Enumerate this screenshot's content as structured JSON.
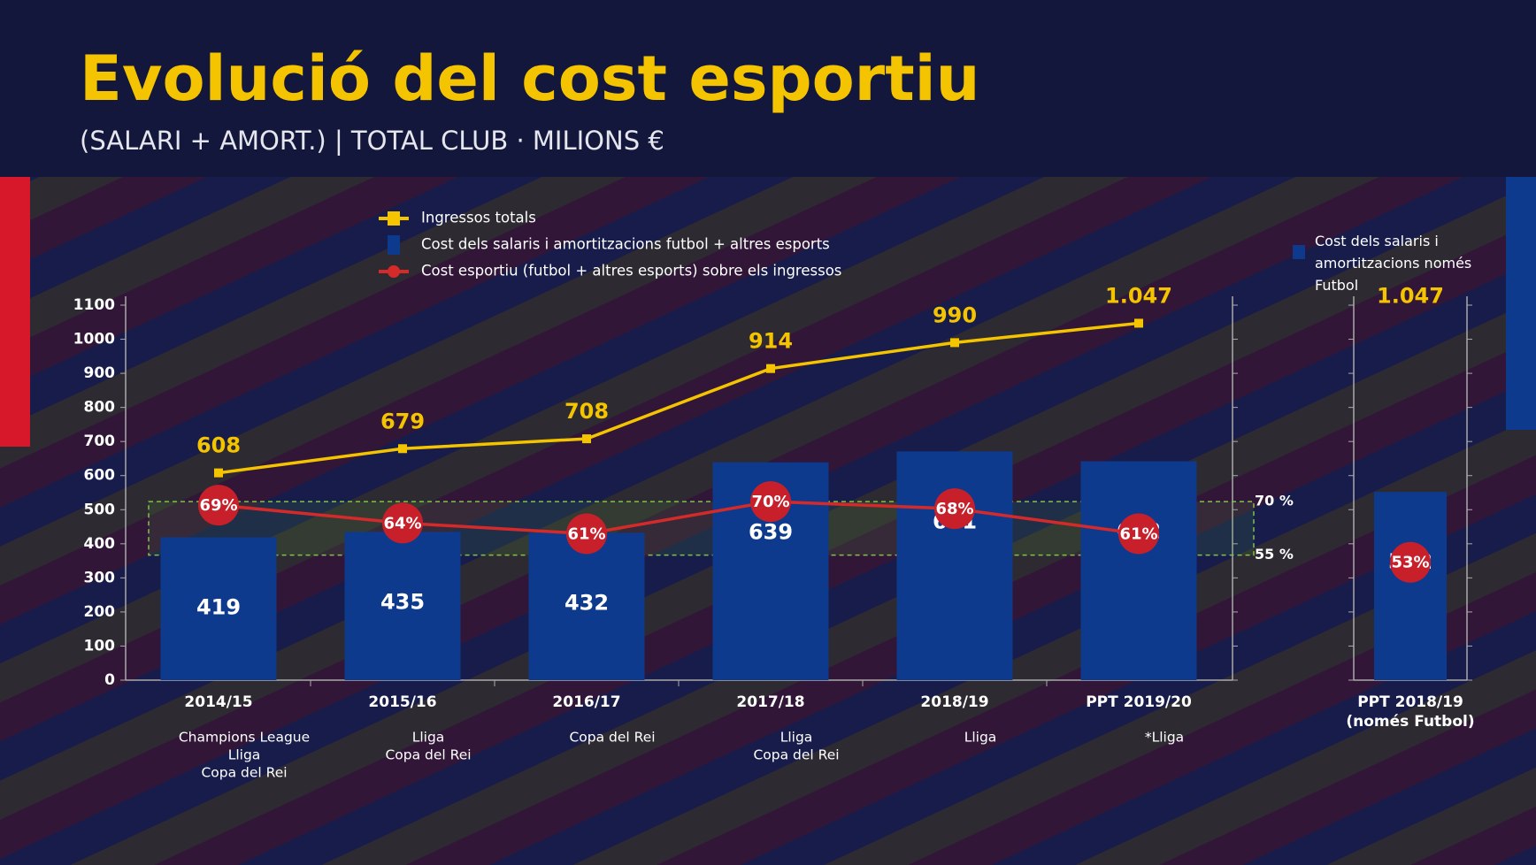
{
  "chart_data": [
    {
      "type": "combo",
      "title": "Evolució del cost esportiu",
      "subtitle": "(SALARI + AMORT.) | TOTAL CLUB · MILIONS €",
      "categories": [
        "2014/15",
        "2015/16",
        "2016/17",
        "2017/18",
        "2018/19",
        "PPT 2019/20"
      ],
      "category_notes": [
        [
          "Champions League",
          "Lliga",
          "Copa del Rei"
        ],
        [
          "Lliga",
          "Copa del Rei"
        ],
        [
          "Copa del Rei"
        ],
        [
          "Lliga",
          "Copa del Rei"
        ],
        [
          "Lliga"
        ],
        [
          "*Lliga"
        ]
      ],
      "series": [
        {
          "name": "Ingressos totals",
          "type": "line",
          "color": "#f5c400",
          "values": [
            608,
            679,
            708,
            914,
            990,
            1047
          ],
          "value_labels": [
            "608",
            "679",
            "708",
            "914",
            "990",
            "1.047"
          ]
        },
        {
          "name": "Cost dels salaris i amortitzacions futbol + altres esports",
          "type": "bar",
          "color": "#0e3a8e",
          "values": [
            419,
            435,
            432,
            639,
            671,
            642
          ]
        },
        {
          "name": "Cost esportiu (futbol  + altres esports) sobre els ingressos",
          "type": "line",
          "axis": "y2",
          "color": "#d42a2a",
          "values": [
            69,
            64,
            61,
            70,
            68,
            61
          ],
          "value_labels": [
            "69%",
            "64%",
            "61%",
            "70%",
            "68%",
            "61%"
          ]
        }
      ],
      "ylim": [
        0,
        1100
      ],
      "yticks": [
        0,
        100,
        200,
        300,
        400,
        500,
        600,
        700,
        800,
        900,
        1000,
        1100
      ],
      "y2lim": [
        20,
        125
      ],
      "y2ticks": [
        {
          "value": 55,
          "label": "55 %"
        },
        {
          "value": 70,
          "label": "70 %"
        }
      ]
    },
    {
      "type": "combo",
      "categories": [
        "PPT 2018/19"
      ],
      "category_notes": [
        [
          "(només Futbol)"
        ]
      ],
      "series": [
        {
          "name": "Ingressos totals",
          "type": "line",
          "color": "#f5c400",
          "values": [
            1047
          ],
          "value_labels": [
            "1.047"
          ]
        },
        {
          "name": "Cost dels salaris i amortitzacions només Futbol",
          "type": "bar",
          "color": "#0e3a8e",
          "values": [
            552
          ]
        },
        {
          "type": "line",
          "axis": "y2",
          "color": "#d42a2a",
          "values": [
            53
          ],
          "value_labels": [
            "53%"
          ]
        }
      ],
      "ylim": [
        0,
        1100
      ],
      "yticks": [
        0,
        100,
        200,
        300,
        400,
        500,
        600,
        700,
        800,
        900,
        1000,
        1100
      ],
      "y2lim": [
        20,
        125
      ]
    }
  ]
}
